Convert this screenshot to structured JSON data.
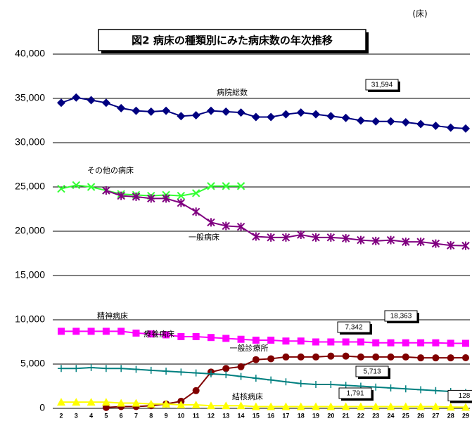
{
  "chart_data": {
    "type": "line",
    "title": "図2 病床の種類別にみた病床数の年次推移",
    "unit": "(床)",
    "categories": [
      "2",
      "3",
      "4",
      "5",
      "6",
      "7",
      "8",
      "9",
      "10",
      "11",
      "12",
      "13",
      "14",
      "15",
      "16",
      "17",
      "18",
      "19",
      "20",
      "21",
      "22",
      "23",
      "24",
      "25",
      "26",
      "27",
      "28",
      "29"
    ],
    "ylim": [
      0,
      40000
    ],
    "yticks": [
      {
        "value": 0,
        "label": "0"
      },
      {
        "value": 5000,
        "label": "5,000"
      },
      {
        "value": 10000,
        "label": "10,000"
      },
      {
        "value": 15000,
        "label": "15,000"
      },
      {
        "value": 20000,
        "label": "20,000"
      },
      {
        "value": 25000,
        "label": "25,000"
      },
      {
        "value": 30000,
        "label": "30,000"
      },
      {
        "value": 35000,
        "label": "35,000"
      },
      {
        "value": 40000,
        "label": "40,000"
      }
    ],
    "grid": true,
    "series": [
      {
        "name": "病院総数",
        "color": "#000080",
        "marker": "diamond",
        "values": [
          34500,
          35100,
          34800,
          34500,
          33900,
          33600,
          33500,
          33600,
          33000,
          33100,
          33600,
          33500,
          33400,
          32900,
          32900,
          33200,
          33400,
          33200,
          33000,
          32800,
          32500,
          32400,
          32400,
          32300,
          32100,
          31900,
          31700,
          31594
        ],
        "value_labels": [
          null,
          null,
          null,
          null,
          null,
          null,
          null,
          null,
          null,
          null,
          null,
          null,
          null,
          null,
          null,
          null,
          null,
          null,
          null,
          null,
          null,
          null,
          null,
          null,
          null,
          null,
          null,
          "31,594"
        ]
      },
      {
        "name": "その他の病床",
        "color": "#33ff33",
        "marker": "cross",
        "values": [
          24800,
          25200,
          25000,
          24600,
          24200,
          24100,
          24000,
          24100,
          24000,
          24300,
          25100,
          25100,
          25100,
          null,
          null,
          null,
          null,
          null,
          null,
          null,
          null,
          null,
          null,
          null,
          null,
          null,
          null,
          null
        ]
      },
      {
        "name": "一般病床",
        "color": "#800080",
        "marker": "star",
        "values": [
          null,
          null,
          null,
          24600,
          24000,
          23900,
          23700,
          23700,
          23200,
          22200,
          21000,
          20600,
          20500,
          19400,
          19300,
          19300,
          19600,
          19300,
          19300,
          19200,
          19000,
          18900,
          19000,
          18800,
          18800,
          18600,
          18400,
          18363
        ],
        "value_labels": [
          null,
          null,
          null,
          null,
          null,
          null,
          null,
          null,
          null,
          null,
          null,
          null,
          null,
          null,
          null,
          null,
          null,
          null,
          null,
          null,
          null,
          null,
          null,
          null,
          null,
          null,
          null,
          "18,363"
        ]
      },
      {
        "name": "精神病床",
        "color": "#ff00ff",
        "marker": "square",
        "values": [
          8700,
          8700,
          8700,
          8700,
          8700,
          8500,
          8400,
          8300,
          8100,
          8100,
          8000,
          7900,
          7800,
          7700,
          7700,
          7600,
          7600,
          7500,
          7500,
          7500,
          7500,
          7400,
          7400,
          7400,
          7400,
          7400,
          7350,
          7342
        ],
        "value_labels": [
          null,
          null,
          null,
          null,
          null,
          null,
          null,
          null,
          null,
          null,
          null,
          null,
          null,
          null,
          null,
          null,
          null,
          null,
          null,
          null,
          null,
          null,
          null,
          null,
          null,
          null,
          null,
          "7,342"
        ]
      },
      {
        "name": "療養病床",
        "color": "#800000",
        "marker": "circle",
        "values": [
          null,
          null,
          null,
          100,
          200,
          200,
          300,
          500,
          800,
          2000,
          4100,
          4500,
          4700,
          5500,
          5600,
          5800,
          5800,
          5800,
          5900,
          5900,
          5800,
          5800,
          5800,
          5800,
          5700,
          5700,
          5700,
          5713
        ],
        "value_labels": [
          null,
          null,
          null,
          null,
          null,
          null,
          null,
          null,
          null,
          null,
          null,
          null,
          null,
          null,
          null,
          null,
          null,
          null,
          null,
          null,
          null,
          null,
          null,
          null,
          null,
          null,
          null,
          "5,713"
        ]
      },
      {
        "name": "一般診療所",
        "color": "#008080",
        "marker": "plus",
        "values": [
          4500,
          4500,
          4600,
          4500,
          4500,
          4400,
          4300,
          4200,
          4100,
          4000,
          3900,
          3800,
          3600,
          3400,
          3200,
          3000,
          2800,
          2700,
          2700,
          2600,
          2500,
          2400,
          2300,
          2200,
          2100,
          2000,
          1900,
          1791
        ],
        "value_labels": [
          null,
          null,
          null,
          null,
          null,
          null,
          null,
          null,
          null,
          null,
          null,
          null,
          null,
          null,
          null,
          null,
          null,
          null,
          null,
          null,
          null,
          null,
          null,
          null,
          null,
          null,
          null,
          "1,791"
        ]
      },
      {
        "name": "結核病床",
        "color": "#ffff00",
        "marker": "triangle",
        "values": [
          700,
          700,
          700,
          700,
          600,
          600,
          500,
          500,
          400,
          400,
          300,
          300,
          300,
          200,
          200,
          200,
          200,
          200,
          200,
          200,
          200,
          200,
          200,
          200,
          200,
          200,
          150,
          128
        ],
        "value_labels": [
          null,
          null,
          null,
          null,
          null,
          null,
          null,
          null,
          null,
          null,
          null,
          null,
          null,
          null,
          null,
          null,
          null,
          null,
          null,
          null,
          null,
          null,
          null,
          null,
          null,
          null,
          null,
          "128"
        ]
      }
    ]
  }
}
